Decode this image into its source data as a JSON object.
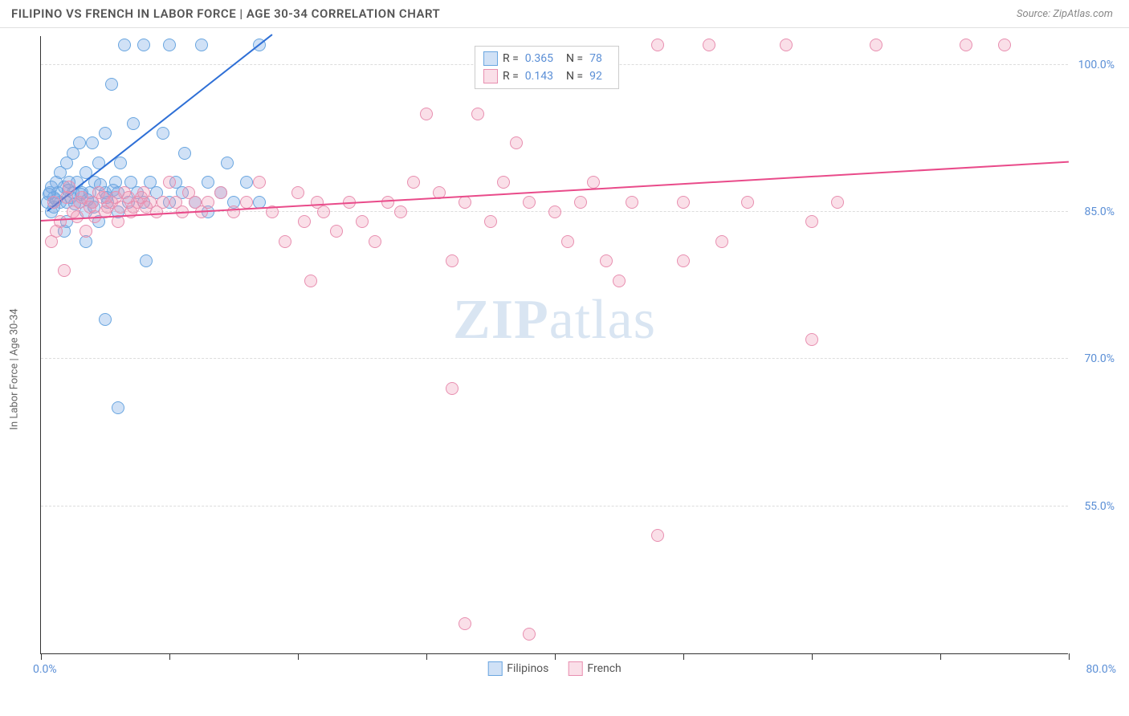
{
  "header": {
    "title": "FILIPINO VS FRENCH IN LABOR FORCE | AGE 30-34 CORRELATION CHART",
    "source": "Source: ZipAtlas.com"
  },
  "chart": {
    "type": "scatter",
    "y_axis_label": "In Labor Force | Age 30-34",
    "x_domain": [
      0,
      80
    ],
    "y_domain": [
      40,
      103
    ],
    "x_ticks": [
      0,
      10,
      20,
      30,
      40,
      50,
      60,
      70,
      80
    ],
    "x_tick_labels": {
      "min": "0.0%",
      "max": "80.0%"
    },
    "y_gridlines": [
      55,
      70,
      85,
      100
    ],
    "y_tick_labels": [
      "55.0%",
      "70.0%",
      "85.0%",
      "100.0%"
    ],
    "background_color": "#ffffff",
    "grid_color": "#dddddd",
    "axis_color": "#333333",
    "label_color": "#5b8fd6",
    "watermark": {
      "text_bold": "ZIP",
      "text_light": "atlas"
    },
    "series": [
      {
        "name": "Filipinos",
        "color_fill": "rgba(120,170,230,0.35)",
        "color_stroke": "#6aa6e0",
        "trend_color": "#2e6fd6",
        "R": "0.365",
        "N": "78",
        "trend": {
          "x1": 0.5,
          "y1": 85,
          "x2": 18,
          "y2": 103
        },
        "marker_radius": 8,
        "points": [
          [
            0.5,
            86
          ],
          [
            0.7,
            87
          ],
          [
            0.8,
            85
          ],
          [
            1,
            86.5
          ],
          [
            1.2,
            88
          ],
          [
            1.3,
            87
          ],
          [
            1.5,
            86
          ],
          [
            1.5,
            89
          ],
          [
            1.8,
            87.5
          ],
          [
            2,
            86
          ],
          [
            2,
            90
          ],
          [
            2.2,
            88
          ],
          [
            2.3,
            86.5
          ],
          [
            2.5,
            91
          ],
          [
            2.5,
            87
          ],
          [
            2.8,
            88
          ],
          [
            3,
            86
          ],
          [
            3,
            92
          ],
          [
            3.2,
            87
          ],
          [
            3.5,
            89
          ],
          [
            3.5,
            85
          ],
          [
            3.8,
            87
          ],
          [
            4,
            92
          ],
          [
            4,
            86
          ],
          [
            4.2,
            88
          ],
          [
            4.5,
            90
          ],
          [
            4.5,
            84
          ],
          [
            5,
            87
          ],
          [
            5,
            93
          ],
          [
            5.2,
            86
          ],
          [
            5.5,
            98
          ],
          [
            5.8,
            88
          ],
          [
            6,
            87
          ],
          [
            6,
            85
          ],
          [
            6.2,
            90
          ],
          [
            6.5,
            102
          ],
          [
            6.8,
            86
          ],
          [
            7,
            88
          ],
          [
            7.2,
            94
          ],
          [
            7.5,
            87
          ],
          [
            8,
            102
          ],
          [
            8,
            86
          ],
          [
            8.2,
            80
          ],
          [
            8.5,
            88
          ],
          [
            9,
            87
          ],
          [
            9.5,
            93
          ],
          [
            10,
            86
          ],
          [
            10,
            102
          ],
          [
            10.5,
            88
          ],
          [
            11,
            87
          ],
          [
            11.2,
            91
          ],
          [
            12,
            86
          ],
          [
            12.5,
            102
          ],
          [
            13,
            88
          ],
          [
            13,
            85
          ],
          [
            14,
            87
          ],
          [
            14.5,
            90
          ],
          [
            15,
            86
          ],
          [
            16,
            88
          ],
          [
            17,
            102
          ],
          [
            17,
            86
          ],
          [
            5,
            74
          ],
          [
            6,
            65
          ],
          [
            2,
            84
          ],
          [
            3.5,
            82
          ],
          [
            1.8,
            83
          ],
          [
            0.8,
            87.5
          ],
          [
            1,
            85.5
          ],
          [
            1.2,
            86.2
          ],
          [
            0.6,
            86.8
          ],
          [
            2.1,
            87.2
          ],
          [
            2.6,
            85.8
          ],
          [
            3.1,
            86.8
          ],
          [
            3.6,
            86.2
          ],
          [
            4.1,
            85.5
          ],
          [
            4.6,
            87.8
          ],
          [
            5.1,
            86.5
          ],
          [
            5.6,
            87.2
          ]
        ]
      },
      {
        "name": "French",
        "color_fill": "rgba(240,150,180,0.3)",
        "color_stroke": "#e88fb0",
        "trend_color": "#e94b8a",
        "R": "0.143",
        "N": "92",
        "trend": {
          "x1": 0,
          "y1": 84,
          "x2": 80,
          "y2": 90
        },
        "marker_radius": 8,
        "points": [
          [
            1,
            86
          ],
          [
            1.5,
            84
          ],
          [
            2,
            86.5
          ],
          [
            2.5,
            85
          ],
          [
            3,
            86
          ],
          [
            3.5,
            83
          ],
          [
            4,
            86
          ],
          [
            4.5,
            87
          ],
          [
            5,
            85
          ],
          [
            5.5,
            86
          ],
          [
            6,
            84
          ],
          [
            6.5,
            87
          ],
          [
            7,
            85
          ],
          [
            7.5,
            86
          ],
          [
            8,
            87
          ],
          [
            8.5,
            86
          ],
          [
            9,
            85
          ],
          [
            9.5,
            86
          ],
          [
            10,
            88
          ],
          [
            10.5,
            86
          ],
          [
            11,
            85
          ],
          [
            11.5,
            87
          ],
          [
            12,
            86
          ],
          [
            12.5,
            85
          ],
          [
            13,
            86
          ],
          [
            14,
            87
          ],
          [
            15,
            85
          ],
          [
            16,
            86
          ],
          [
            17,
            88
          ],
          [
            18,
            85
          ],
          [
            19,
            82
          ],
          [
            20,
            87
          ],
          [
            20.5,
            84
          ],
          [
            21,
            78
          ],
          [
            21.5,
            86
          ],
          [
            22,
            85
          ],
          [
            23,
            83
          ],
          [
            24,
            86
          ],
          [
            25,
            84
          ],
          [
            26,
            82
          ],
          [
            27,
            86
          ],
          [
            28,
            85
          ],
          [
            29,
            88
          ],
          [
            30,
            95
          ],
          [
            31,
            87
          ],
          [
            32,
            80
          ],
          [
            33,
            86
          ],
          [
            34,
            95
          ],
          [
            35,
            84
          ],
          [
            36,
            88
          ],
          [
            37,
            92
          ],
          [
            38,
            86
          ],
          [
            40,
            85
          ],
          [
            41,
            82
          ],
          [
            42,
            86
          ],
          [
            43,
            88
          ],
          [
            44,
            80
          ],
          [
            46,
            86
          ],
          [
            48,
            102
          ],
          [
            50,
            86
          ],
          [
            52,
            102
          ],
          [
            53,
            82
          ],
          [
            55,
            86
          ],
          [
            58,
            102
          ],
          [
            60,
            84
          ],
          [
            62,
            86
          ],
          [
            65,
            102
          ],
          [
            72,
            102
          ],
          [
            75,
            102
          ],
          [
            33,
            43
          ],
          [
            38,
            42
          ],
          [
            32,
            67
          ],
          [
            48,
            52
          ],
          [
            60,
            72
          ],
          [
            50,
            80
          ],
          [
            45,
            78
          ],
          [
            0.8,
            82
          ],
          [
            1.2,
            83
          ],
          [
            1.8,
            79
          ],
          [
            2.2,
            87.5
          ],
          [
            2.8,
            84.5
          ],
          [
            3.2,
            86.5
          ],
          [
            3.8,
            85.5
          ],
          [
            4.2,
            84.5
          ],
          [
            4.8,
            86.5
          ],
          [
            5.2,
            85.5
          ],
          [
            5.8,
            86.5
          ],
          [
            6.2,
            85.5
          ],
          [
            6.8,
            86.5
          ],
          [
            7.2,
            85.5
          ],
          [
            7.8,
            86.5
          ],
          [
            8.2,
            85.5
          ]
        ]
      }
    ],
    "legend_bottom": [
      {
        "label": "Filipinos",
        "fill": "rgba(120,170,230,0.35)",
        "stroke": "#6aa6e0"
      },
      {
        "label": "French",
        "fill": "rgba(240,150,180,0.3)",
        "stroke": "#e88fb0"
      }
    ]
  }
}
